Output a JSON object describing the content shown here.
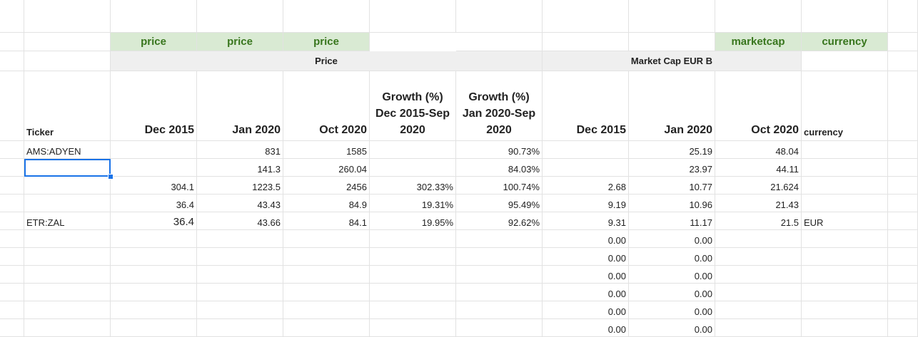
{
  "tags": {
    "C": "price",
    "D": "price",
    "E": "price",
    "I": "marketcap",
    "J": "currency"
  },
  "groups": {
    "price": "Price",
    "marketcap": "Market Cap EUR B"
  },
  "headers": {
    "A": "Ticker",
    "B": "Dec 2015",
    "C": "Jan 2020",
    "D": "Oct 2020",
    "E": "Growth (%) Dec 2015-Sep 2020",
    "F": "Growth (%) Jan 2020-Sep 2020",
    "G": "Dec 2015",
    "H": "Jan 2020",
    "I": "Oct 2020",
    "J": "currency"
  },
  "rows": [
    {
      "A": "AMS:ADYEN",
      "B": "",
      "C": "831",
      "D": "1585",
      "E": "",
      "F": "90.73%",
      "G": "",
      "H": "25.19",
      "I": "48.04",
      "J": ""
    },
    {
      "A": "",
      "B": "",
      "C": "141.3",
      "D": "260.04",
      "E": "",
      "F": "84.03%",
      "G": "",
      "H": "23.97",
      "I": "44.11",
      "J": ""
    },
    {
      "A": "",
      "B": "304.1",
      "C": "1223.5",
      "D": "2456",
      "E": "302.33%",
      "F": "100.74%",
      "G": "2.68",
      "H": "10.77",
      "I": "21.624",
      "J": ""
    },
    {
      "A": "",
      "B": "36.4",
      "C": "43.43",
      "D": "84.9",
      "E": "19.31%",
      "F": "95.49%",
      "G": "9.19",
      "H": "10.96",
      "I": "21.43",
      "J": ""
    },
    {
      "A": "ETR:ZAL",
      "B": "36.4",
      "C": "43.66",
      "D": "84.1",
      "E": "19.95%",
      "F": "92.62%",
      "G": "9.31",
      "H": "11.17",
      "I": "21.5",
      "J": "EUR"
    },
    {
      "A": "",
      "B": "",
      "C": "",
      "D": "",
      "E": "",
      "F": "",
      "G": "0.00",
      "H": "0.00",
      "I": "",
      "J": ""
    },
    {
      "A": "",
      "B": "",
      "C": "",
      "D": "",
      "E": "",
      "F": "",
      "G": "0.00",
      "H": "0.00",
      "I": "",
      "J": ""
    },
    {
      "A": "",
      "B": "",
      "C": "",
      "D": "",
      "E": "",
      "F": "",
      "G": "0.00",
      "H": "0.00",
      "I": "",
      "J": ""
    },
    {
      "A": "",
      "B": "",
      "C": "",
      "D": "",
      "E": "",
      "F": "",
      "G": "0.00",
      "H": "0.00",
      "I": "",
      "J": ""
    },
    {
      "A": "",
      "B": "",
      "C": "",
      "D": "",
      "E": "",
      "F": "",
      "G": "0.00",
      "H": "0.00",
      "I": "",
      "J": ""
    },
    {
      "A": "",
      "B": "",
      "C": "",
      "D": "",
      "E": "",
      "F": "",
      "G": "0.00",
      "H": "0.00",
      "I": "",
      "J": ""
    }
  ],
  "selected_cell": "A2",
  "colors": {
    "tag_bg": "#d9ead3",
    "tag_text": "#38761d",
    "group_bg": "#efefef",
    "selection": "#1a73e8",
    "gridline": "#e2e2e2"
  }
}
